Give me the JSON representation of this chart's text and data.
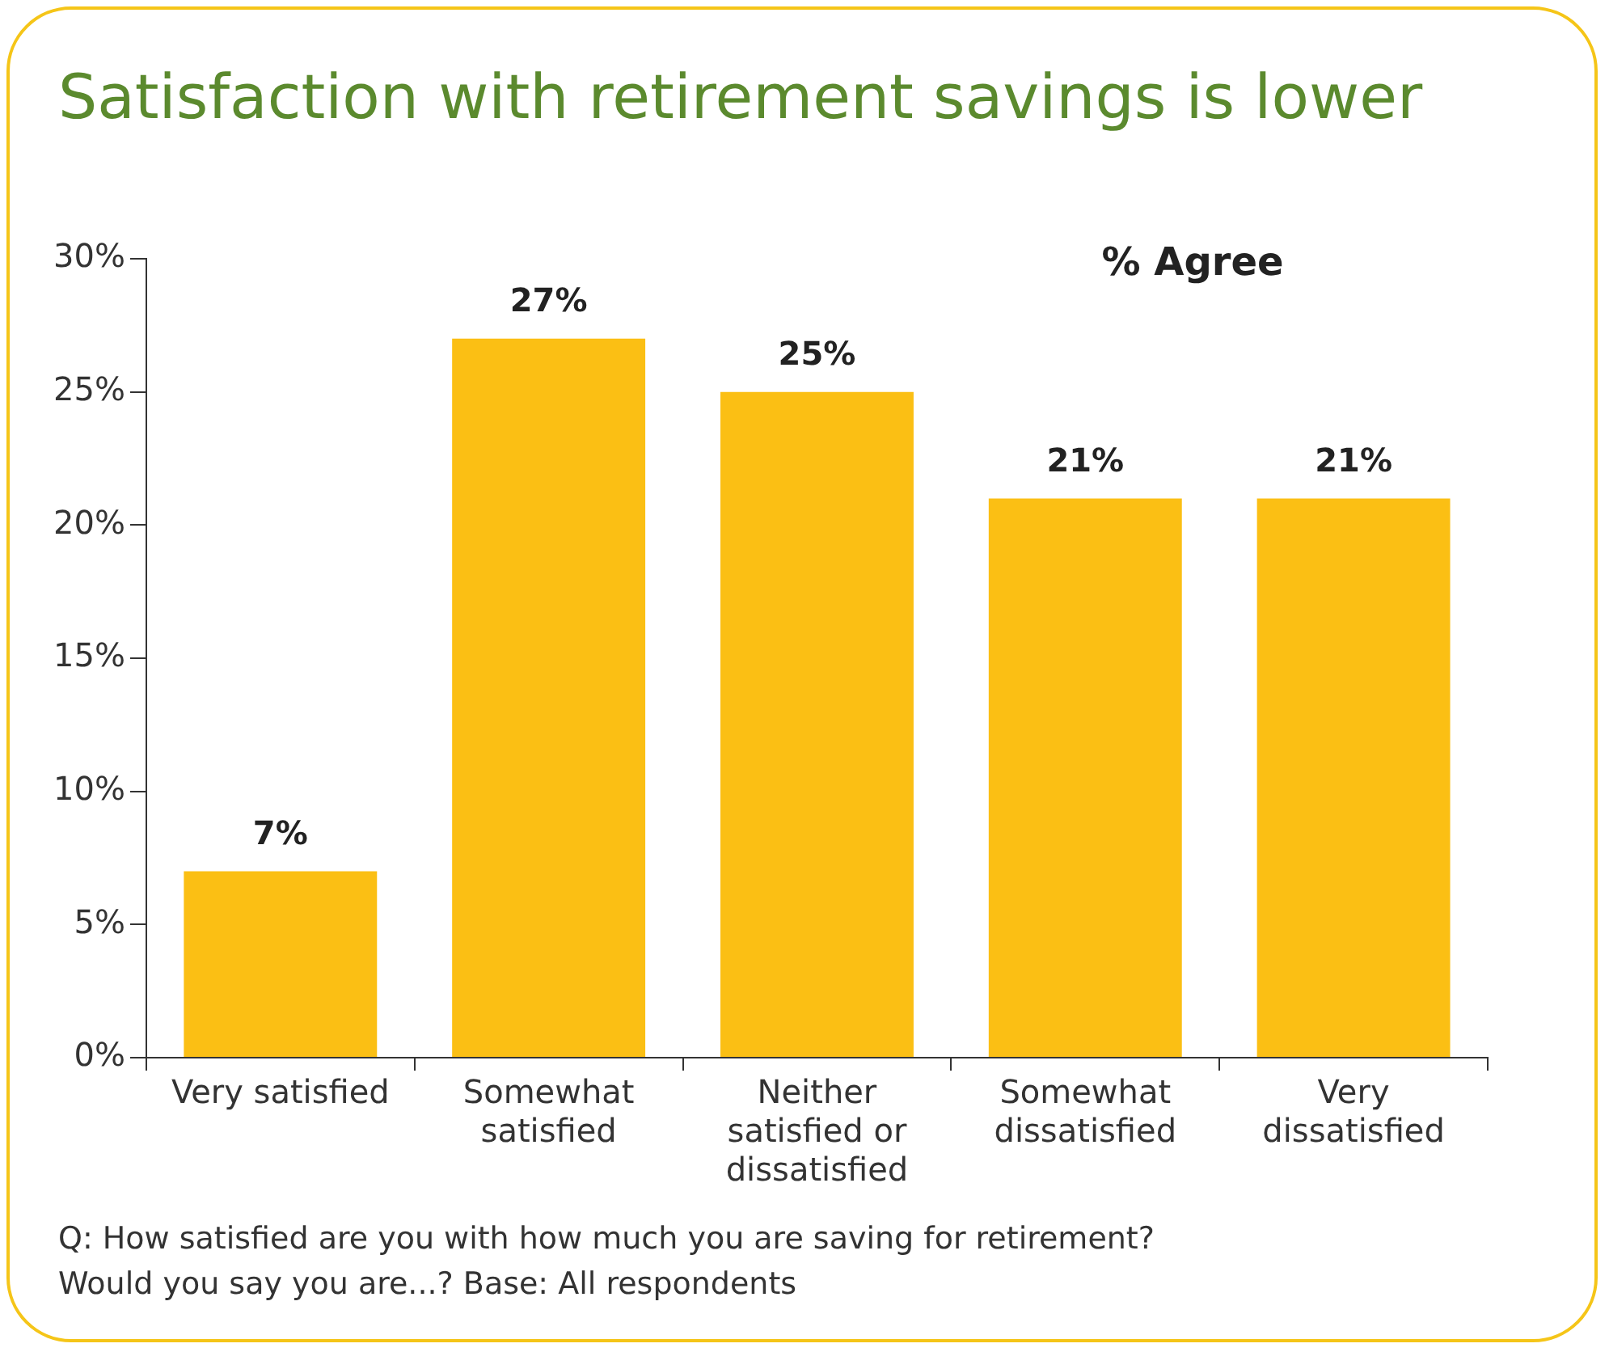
{
  "chart_data": {
    "type": "bar",
    "title": "Satisfaction with retirement savings is lower",
    "categories": [
      "Very satisfied",
      "Somewhat satisfied",
      "Neither satisfied or dissatisfied",
      "Somewhat dissatisfied",
      "Very dissatisfied"
    ],
    "values": [
      7,
      27,
      25,
      21,
      21
    ],
    "color": "#fbbf14",
    "value_labels": [
      "7%",
      "27%",
      "25%",
      "21%",
      "21%"
    ],
    "ylim": [
      0,
      30
    ],
    "yticks": [
      {
        "value": 0,
        "label": "0%"
      },
      {
        "value": 5,
        "label": "5%"
      },
      {
        "value": 10,
        "label": "10%"
      },
      {
        "value": 15,
        "label": "15%"
      },
      {
        "value": 20,
        "label": "20%"
      },
      {
        "value": 25,
        "label": "25%"
      },
      {
        "value": 30,
        "label": "30%"
      }
    ],
    "grid": false,
    "legend": false,
    "annotations": [
      "% Agree",
      "Q: How satisfied are you with how much you are saving for retirement?",
      "Would you say you are...? Base: All respondents"
    ]
  }
}
